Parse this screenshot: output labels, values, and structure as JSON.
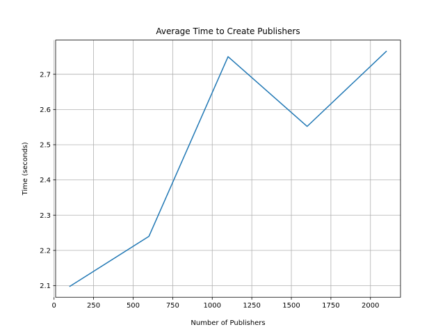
{
  "chart_data": {
    "type": "line",
    "title": "Average Time to Create Publishers",
    "xlabel": "Number of Publishers",
    "ylabel": "Time (seconds)",
    "xlim": [
      10,
      2190
    ],
    "ylim": [
      2.067,
      2.797
    ],
    "xticks": [
      0,
      250,
      500,
      750,
      1000,
      1250,
      1500,
      1750,
      2000
    ],
    "xtick_labels": [
      "0",
      "250",
      "500",
      "750",
      "1000",
      "1250",
      "1500",
      "1750",
      "2000"
    ],
    "yticks": [
      2.1,
      2.2,
      2.3,
      2.4,
      2.5,
      2.6,
      2.7
    ],
    "ytick_labels": [
      "2.1",
      "2.2",
      "2.3",
      "2.4",
      "2.5",
      "2.6",
      "2.7"
    ],
    "grid": true,
    "series": [
      {
        "color": "#1f77b4",
        "x": [
          100,
          600,
          1100,
          1600,
          2100
        ],
        "y": [
          2.098,
          2.24,
          2.75,
          2.552,
          2.765
        ]
      }
    ]
  }
}
